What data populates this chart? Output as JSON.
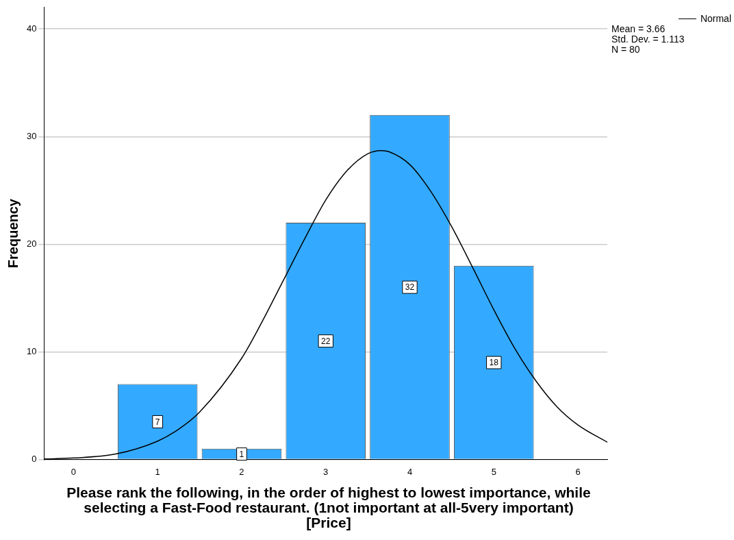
{
  "chart_data": {
    "type": "histogram",
    "xlabel": "Please rank the following, in the order of highest to lowest importance, while selecting a Fast-Food restaurant. (1not important at all-5very important) [Price]",
    "ylabel": "Frequency",
    "bins": [
      0.5,
      1.5,
      2.5,
      3.5,
      4.5,
      5.5
    ],
    "values": [
      7,
      1,
      22,
      32,
      18
    ],
    "color": "#33aaff",
    "value_labels": [
      "7",
      "1",
      "22",
      "32",
      "18"
    ],
    "series": [
      {
        "name": "Normal",
        "type": "line",
        "color": "#000000",
        "x": [
          -0.35,
          0,
          0.5,
          1,
          1.25,
          1.5,
          2,
          2.25,
          2.5,
          2.75,
          3,
          3.25,
          3.5,
          3.66,
          3.75,
          4,
          4.25,
          4.5,
          4.75,
          5,
          5.25,
          5.5,
          5.75,
          6,
          6.35
        ],
        "values": [
          0.04,
          0.13,
          0.5,
          1.7,
          2.8,
          4.4,
          9.4,
          12.9,
          16.7,
          20.5,
          24.1,
          26.8,
          28.4,
          28.7,
          28.6,
          27.4,
          24.9,
          21.6,
          17.8,
          13.9,
          10.3,
          7.3,
          4.9,
          3.2,
          1.6
        ]
      }
    ],
    "xlim": [
      -0.35,
      6.35
    ],
    "xticks": [
      0,
      1,
      2,
      3,
      4,
      5,
      6
    ],
    "ylim": [
      0,
      42
    ],
    "yticks": [
      0,
      10,
      20,
      30,
      40
    ],
    "grid": "y",
    "legend": "top right",
    "marker": "none",
    "annotations": [
      "Mean = 3.66",
      "Std. Dev. = 1.113",
      "N = 80"
    ]
  }
}
